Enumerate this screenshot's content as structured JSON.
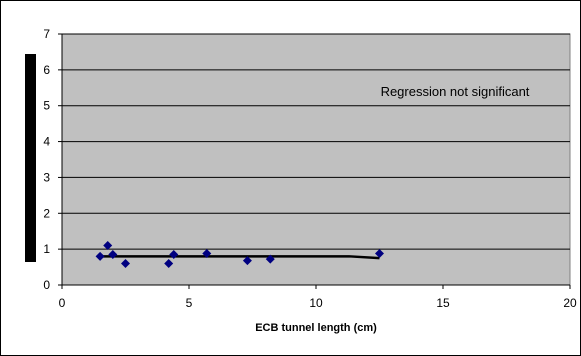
{
  "chart_data": {
    "type": "scatter",
    "title": "",
    "xlabel": "ECB tunnel length (cm)",
    "ylabel": "",
    "xlim": [
      0,
      20
    ],
    "ylim": [
      0,
      7
    ],
    "xticks": [
      0,
      5,
      10,
      15,
      20
    ],
    "yticks": [
      0,
      1,
      2,
      3,
      4,
      5,
      6,
      7
    ],
    "grid": "horizontal",
    "legend": "none",
    "plot_background": "#C0C0C0",
    "marker_color": "#000080",
    "line_color": "#000000",
    "annotation": "Regression not significant",
    "points": [
      {
        "x": 1.5,
        "y": 0.8
      },
      {
        "x": 1.8,
        "y": 1.1
      },
      {
        "x": 2.0,
        "y": 0.85
      },
      {
        "x": 2.5,
        "y": 0.6
      },
      {
        "x": 4.2,
        "y": 0.6
      },
      {
        "x": 4.4,
        "y": 0.85
      },
      {
        "x": 5.7,
        "y": 0.88
      },
      {
        "x": 7.3,
        "y": 0.68
      },
      {
        "x": 8.2,
        "y": 0.72
      },
      {
        "x": 12.5,
        "y": 0.88
      }
    ],
    "trend_line": [
      {
        "x": 1.5,
        "y": 0.8
      },
      {
        "x": 11.3,
        "y": 0.8
      },
      {
        "x": 12.5,
        "y": 0.75
      }
    ]
  }
}
